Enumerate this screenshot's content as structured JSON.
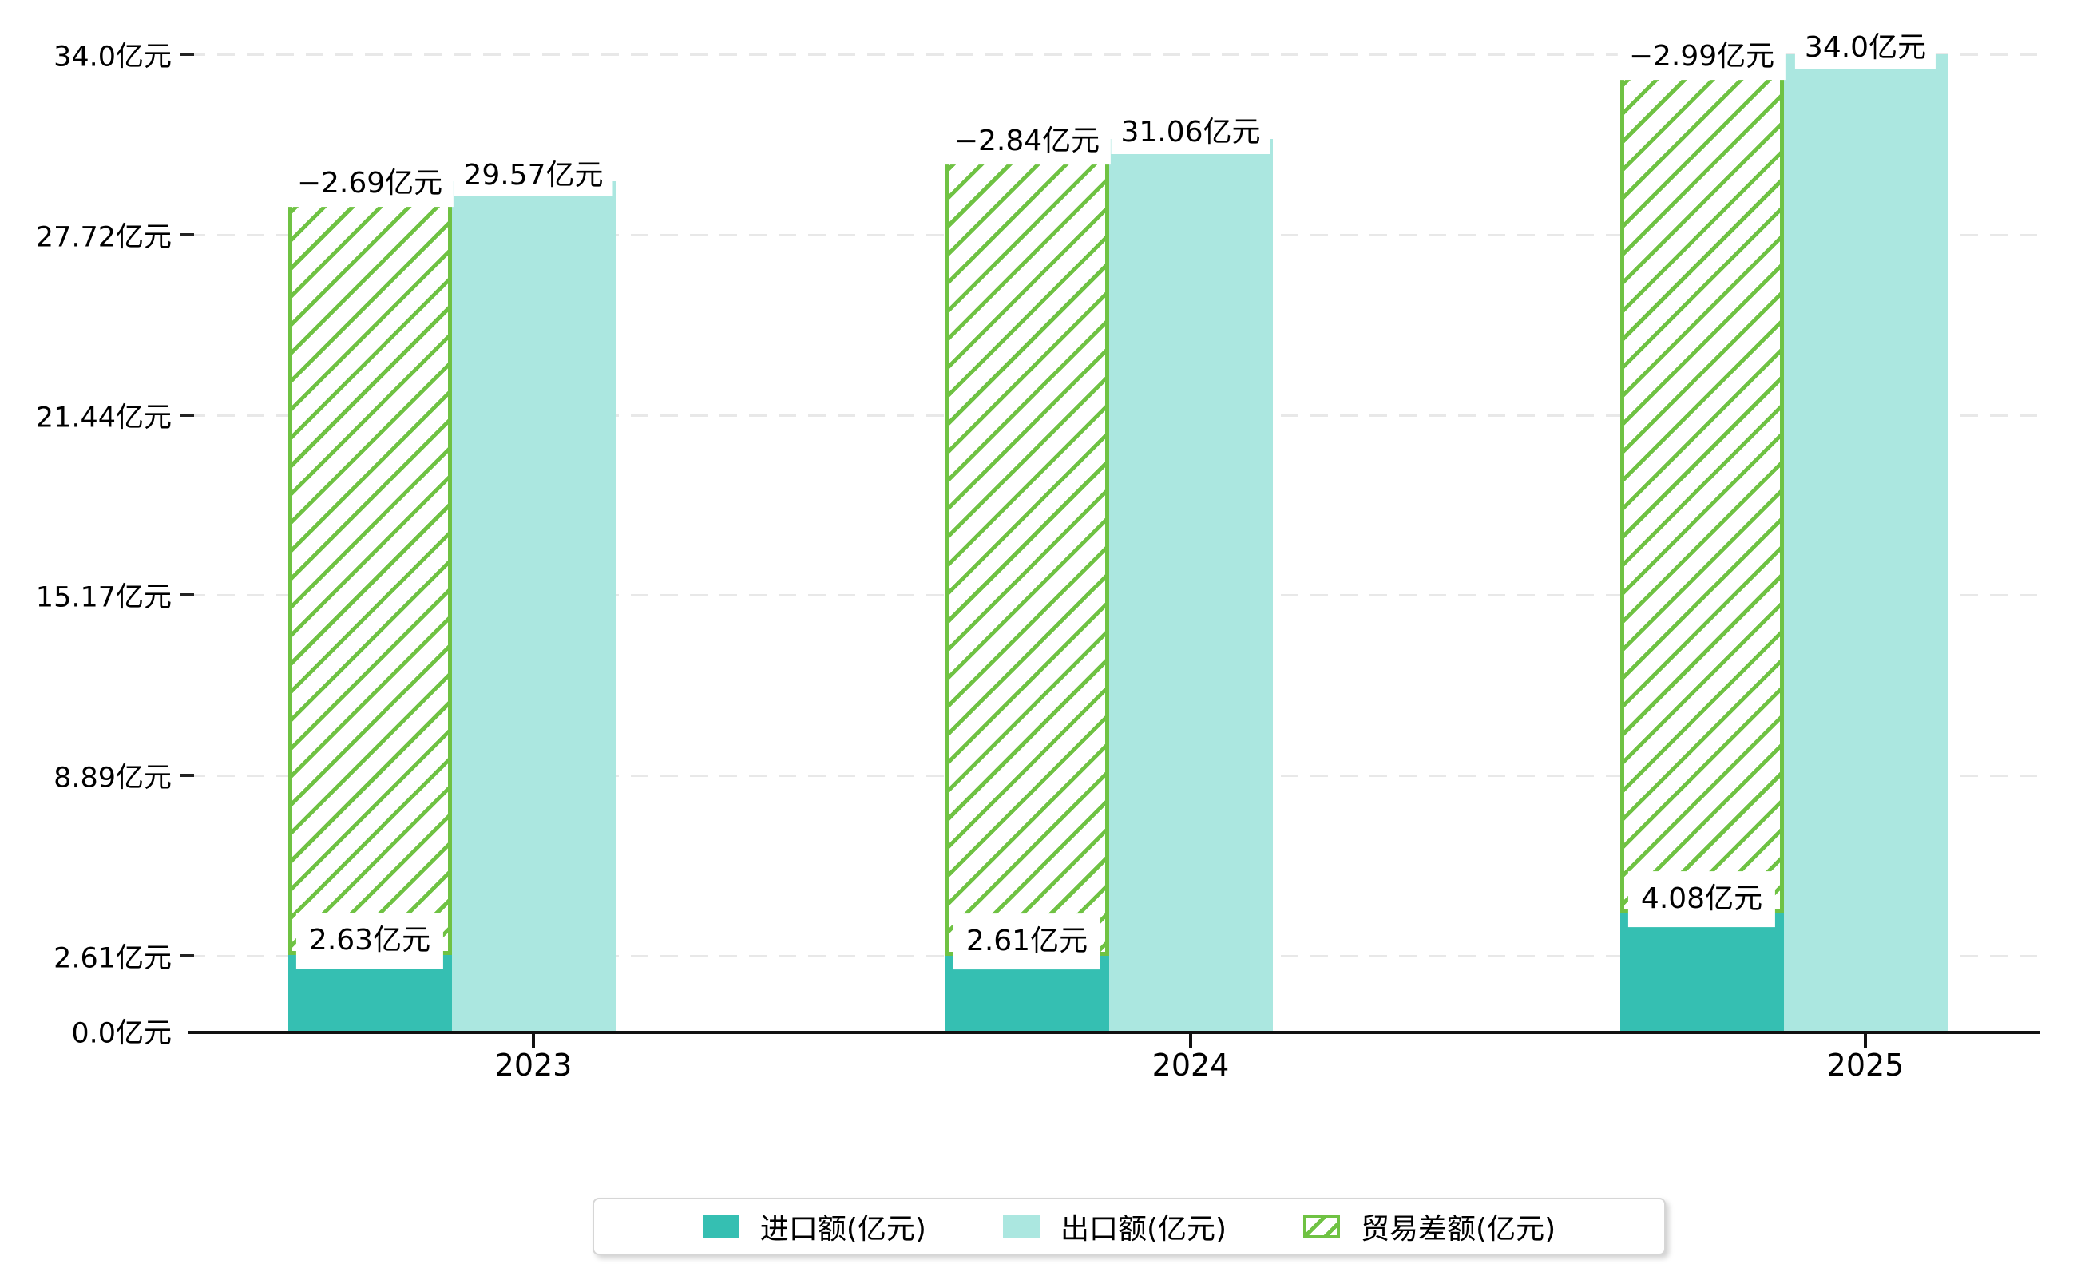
{
  "chart_data": {
    "type": "bar",
    "title": "",
    "unit": "亿元",
    "categories": [
      "2023",
      "2024",
      "2025"
    ],
    "series": [
      {
        "name": "进口额(亿元)",
        "type": "bar",
        "color": "#35bfb2",
        "values": [
          2.63,
          2.61,
          4.08
        ],
        "data_labels": [
          "2.63亿元",
          "2.61亿元",
          "4.08亿元"
        ]
      },
      {
        "name": "出口额(亿元)",
        "type": "bar",
        "color": "#abe7e0",
        "values": [
          29.57,
          31.06,
          34.0
        ],
        "data_labels": [
          "29.57亿元",
          "31.06亿元",
          "34.0亿元"
        ]
      },
      {
        "name": "贸易差额(亿元)",
        "type": "bar-hatched",
        "color": "#6fc243",
        "values": [
          -2.69,
          -2.84,
          -2.99
        ],
        "data_labels": [
          "−2.69亿元",
          "−2.84亿元",
          "−2.99亿元"
        ]
      }
    ],
    "y_axis": {
      "range": [
        0,
        34.0
      ],
      "ticks": [
        {
          "value": 0.0,
          "label": "0.0亿元"
        },
        {
          "value": 2.61,
          "label": "2.61亿元"
        },
        {
          "value": 8.89,
          "label": "8.89亿元"
        },
        {
          "value": 15.17,
          "label": "15.17亿元"
        },
        {
          "value": 21.44,
          "label": "21.44亿元"
        },
        {
          "value": 27.72,
          "label": "27.72亿元"
        },
        {
          "value": 34.0,
          "label": "34.0亿元"
        }
      ]
    },
    "grid": "horizontal-dashed",
    "legend": {
      "position": "bottom",
      "items": [
        "进口额(亿元)",
        "出口额(亿元)",
        "贸易差额(亿元)"
      ]
    },
    "colors": {
      "import": "#35bfb2",
      "export": "#abe7e0",
      "balance_hatch": "#6fc243",
      "grid": "#e8e8e8",
      "axis": "#111111",
      "legend_border": "#d6d6d6"
    }
  }
}
